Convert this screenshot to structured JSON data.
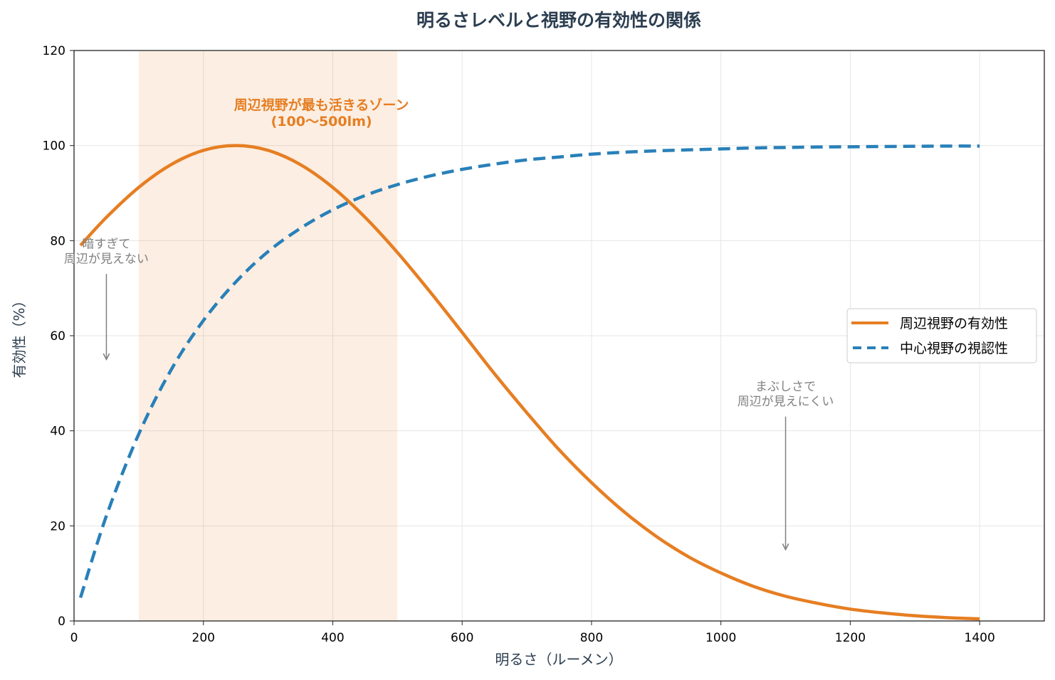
{
  "chart_data": {
    "type": "line",
    "title": "明るさレベルと視野の有効性の関係",
    "xlabel": "明るさ（ルーメン）",
    "ylabel": "有効性（%）",
    "xlim": [
      0,
      1500
    ],
    "ylim": [
      0,
      120
    ],
    "xticks": [
      0,
      200,
      400,
      600,
      800,
      1000,
      1200,
      1400
    ],
    "yticks": [
      0,
      20,
      40,
      60,
      80,
      100,
      120
    ],
    "grid": true,
    "legend_position": "center-right",
    "x": [
      10,
      50,
      100,
      150,
      200,
      250,
      300,
      350,
      400,
      450,
      500,
      550,
      600,
      650,
      700,
      750,
      800,
      850,
      900,
      950,
      1000,
      1050,
      1100,
      1150,
      1200,
      1250,
      1300,
      1350,
      1400
    ],
    "series": [
      {
        "name": "周辺視野の有効性",
        "color": "#e67e22",
        "style": "solid",
        "values": [
          79.0,
          84.9,
          91.2,
          96.0,
          99.0,
          100,
          99.0,
          96.0,
          91.2,
          84.9,
          77.5,
          69.3,
          60.7,
          52.0,
          43.8,
          36.0,
          29.1,
          23.0,
          17.8,
          13.5,
          10.1,
          7.3,
          5.2,
          3.7,
          2.5,
          1.7,
          1.1,
          0.7,
          0.45
        ]
      },
      {
        "name": "中心視野の視認性",
        "color": "#2980b9",
        "style": "dashed",
        "values": [
          4.9,
          22.1,
          39.3,
          52.8,
          63.2,
          71.3,
          77.7,
          82.6,
          86.5,
          89.5,
          91.8,
          93.6,
          95.0,
          96.1,
          97.0,
          97.6,
          98.2,
          98.6,
          98.9,
          99.1,
          99.3,
          99.5,
          99.6,
          99.7,
          99.75,
          99.8,
          99.85,
          99.9,
          99.9
        ]
      }
    ],
    "shaded_region": {
      "x_from": 100,
      "x_to": 500,
      "color": "#e67e22",
      "label_line1": "周辺視野が最も活きるゾーン",
      "label_line2": "(100〜500lm)",
      "label_at": [
        300,
        108
      ]
    },
    "annotations": [
      {
        "line1": "暗すぎて",
        "line2": "周辺が見えない",
        "text_at": [
          50,
          77
        ],
        "arrow_from": [
          50,
          73
        ],
        "arrow_to": [
          50,
          55
        ],
        "color": "#808080"
      },
      {
        "line1": "まぶしさで",
        "line2": "周辺が見えにくい",
        "text_at": [
          1100,
          47
        ],
        "arrow_from": [
          1100,
          43
        ],
        "arrow_to": [
          1100,
          15
        ],
        "color": "#808080"
      }
    ]
  }
}
